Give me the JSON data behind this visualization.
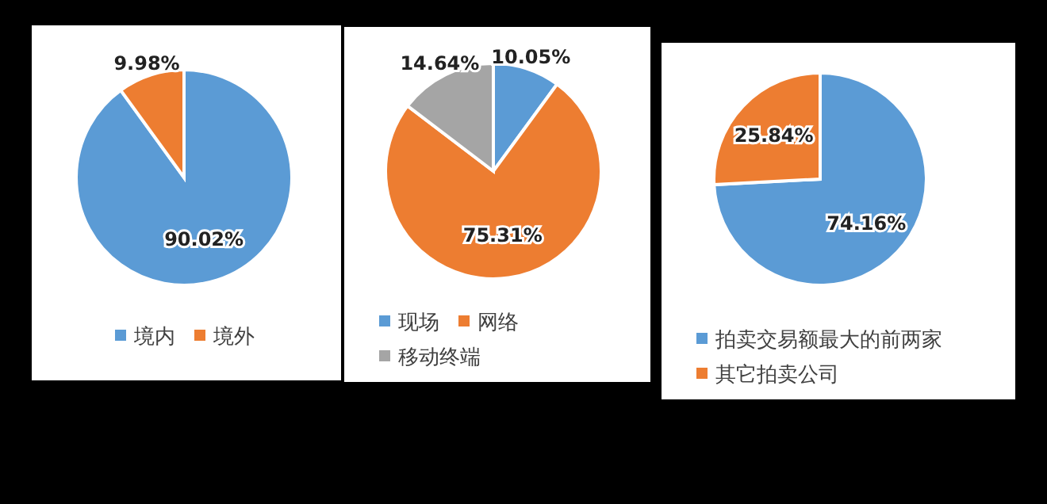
{
  "chart_data": [
    {
      "type": "pie",
      "categories": [
        "境内",
        "境外"
      ],
      "values": [
        90.02,
        9.98
      ],
      "colors": [
        "#5b9bd5",
        "#ed7d31"
      ],
      "value_labels": [
        "90.02%",
        "9.98%"
      ],
      "legend": "bottom"
    },
    {
      "type": "pie",
      "categories": [
        "现场",
        "网络",
        "移动终端"
      ],
      "values": [
        10.05,
        75.31,
        14.64
      ],
      "colors": [
        "#5b9bd5",
        "#ed7d31",
        "#a5a5a5"
      ],
      "value_labels": [
        "10.05%",
        "75.31%",
        "14.64%"
      ],
      "legend": "bottom"
    },
    {
      "type": "pie",
      "categories": [
        "拍卖交易额最大的前两家",
        "其它拍卖公司"
      ],
      "values": [
        74.16,
        25.84
      ],
      "colors": [
        "#5b9bd5",
        "#ed7d31"
      ],
      "value_labels": [
        "74.16%",
        "25.84%"
      ],
      "legend": "bottom"
    }
  ]
}
